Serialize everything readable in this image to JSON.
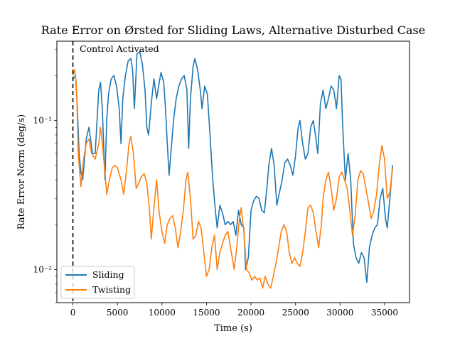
{
  "chart_data": {
    "type": "line",
    "title": "Rate Error on Ørsted for Sliding Laws, Alternative Disturbed Case",
    "xlabel": "Time (s)",
    "ylabel": "Rate Error Norm (deg/s)",
    "xlim": [
      -1800,
      37800
    ],
    "ylim": [
      0.006,
      0.34
    ],
    "yscale": "log",
    "grid": false,
    "legend_position": "lower-left",
    "x_ticks": [
      0,
      5000,
      10000,
      15000,
      20000,
      25000,
      30000,
      35000
    ],
    "x_tick_labels": [
      "0",
      "5000",
      "10000",
      "15000",
      "20000",
      "25000",
      "30000",
      "35000"
    ],
    "y_ticks": [
      0.01,
      0.1
    ],
    "y_tick_labels": [
      "10⁻²",
      "10⁻¹"
    ],
    "annotation": {
      "text": "Control Activated",
      "vline_x": 0
    },
    "series": [
      {
        "name": "Sliding",
        "color": "#1f77b4",
        "points": [
          [
            0,
            0.19
          ],
          [
            300,
            0.2
          ],
          [
            500,
            0.12
          ],
          [
            700,
            0.06
          ],
          [
            900,
            0.045
          ],
          [
            1100,
            0.04
          ],
          [
            1300,
            0.055
          ],
          [
            1500,
            0.075
          ],
          [
            1800,
            0.09
          ],
          [
            2200,
            0.06
          ],
          [
            2500,
            0.06
          ],
          [
            2900,
            0.16
          ],
          [
            3100,
            0.18
          ],
          [
            3300,
            0.12
          ],
          [
            3600,
            0.04
          ],
          [
            3800,
            0.1
          ],
          [
            4000,
            0.15
          ],
          [
            4300,
            0.19
          ],
          [
            4600,
            0.2
          ],
          [
            4900,
            0.17
          ],
          [
            5200,
            0.12
          ],
          [
            5400,
            0.07
          ],
          [
            5600,
            0.14
          ],
          [
            5900,
            0.2
          ],
          [
            6200,
            0.25
          ],
          [
            6500,
            0.26
          ],
          [
            6700,
            0.22
          ],
          [
            6900,
            0.12
          ],
          [
            7200,
            0.28
          ],
          [
            7500,
            0.29
          ],
          [
            7800,
            0.24
          ],
          [
            8100,
            0.16
          ],
          [
            8300,
            0.09
          ],
          [
            8500,
            0.08
          ],
          [
            8800,
            0.13
          ],
          [
            9100,
            0.19
          ],
          [
            9400,
            0.14
          ],
          [
            9700,
            0.18
          ],
          [
            9900,
            0.21
          ],
          [
            10200,
            0.18
          ],
          [
            10400,
            0.12
          ],
          [
            10600,
            0.07
          ],
          [
            10800,
            0.043
          ],
          [
            11000,
            0.06
          ],
          [
            11300,
            0.1
          ],
          [
            11600,
            0.14
          ],
          [
            11900,
            0.17
          ],
          [
            12200,
            0.19
          ],
          [
            12500,
            0.2
          ],
          [
            12800,
            0.16
          ],
          [
            13000,
            0.065
          ],
          [
            13200,
            0.14
          ],
          [
            13500,
            0.23
          ],
          [
            13700,
            0.26
          ],
          [
            14000,
            0.22
          ],
          [
            14300,
            0.16
          ],
          [
            14500,
            0.12
          ],
          [
            14800,
            0.17
          ],
          [
            15100,
            0.15
          ],
          [
            15400,
            0.08
          ],
          [
            15700,
            0.04
          ],
          [
            16000,
            0.025
          ],
          [
            16200,
            0.019
          ],
          [
            16500,
            0.027
          ],
          [
            16800,
            0.024
          ],
          [
            17100,
            0.02
          ],
          [
            17400,
            0.021
          ],
          [
            17700,
            0.02
          ],
          [
            18000,
            0.021
          ],
          [
            18300,
            0.017
          ],
          [
            18600,
            0.025
          ],
          [
            18900,
            0.02
          ],
          [
            19200,
            0.019
          ],
          [
            19400,
            0.01
          ],
          [
            19700,
            0.012
          ],
          [
            20000,
            0.025
          ],
          [
            20300,
            0.029
          ],
          [
            20600,
            0.031
          ],
          [
            20900,
            0.03
          ],
          [
            21200,
            0.025
          ],
          [
            21500,
            0.024
          ],
          [
            21800,
            0.036
          ],
          [
            22000,
            0.05
          ],
          [
            22300,
            0.065
          ],
          [
            22600,
            0.05
          ],
          [
            22900,
            0.027
          ],
          [
            23200,
            0.033
          ],
          [
            23500,
            0.04
          ],
          [
            23800,
            0.052
          ],
          [
            24100,
            0.055
          ],
          [
            24400,
            0.05
          ],
          [
            24700,
            0.043
          ],
          [
            25000,
            0.058
          ],
          [
            25300,
            0.09
          ],
          [
            25500,
            0.1
          ],
          [
            25800,
            0.07
          ],
          [
            26100,
            0.055
          ],
          [
            26400,
            0.06
          ],
          [
            26700,
            0.09
          ],
          [
            27000,
            0.1
          ],
          [
            27300,
            0.075
          ],
          [
            27500,
            0.06
          ],
          [
            27800,
            0.13
          ],
          [
            28100,
            0.16
          ],
          [
            28400,
            0.12
          ],
          [
            28700,
            0.14
          ],
          [
            29000,
            0.17
          ],
          [
            29300,
            0.16
          ],
          [
            29600,
            0.12
          ],
          [
            29900,
            0.2
          ],
          [
            30100,
            0.19
          ],
          [
            30300,
            0.09
          ],
          [
            30600,
            0.04
          ],
          [
            30900,
            0.06
          ],
          [
            31200,
            0.04
          ],
          [
            31500,
            0.015
          ],
          [
            31800,
            0.012
          ],
          [
            32100,
            0.011
          ],
          [
            32400,
            0.013
          ],
          [
            32700,
            0.012
          ],
          [
            33000,
            0.0082
          ],
          [
            33300,
            0.014
          ],
          [
            33600,
            0.017
          ],
          [
            33900,
            0.019
          ],
          [
            34200,
            0.02
          ],
          [
            34500,
            0.03
          ],
          [
            34800,
            0.035
          ],
          [
            35100,
            0.022
          ],
          [
            35300,
            0.019
          ],
          [
            35600,
            0.03
          ],
          [
            35900,
            0.05
          ]
        ]
      },
      {
        "name": "Twisting",
        "color": "#ff7f0e",
        "points": [
          [
            0,
            0.2
          ],
          [
            200,
            0.22
          ],
          [
            400,
            0.17
          ],
          [
            600,
            0.06
          ],
          [
            900,
            0.036
          ],
          [
            1200,
            0.055
          ],
          [
            1500,
            0.07
          ],
          [
            1800,
            0.075
          ],
          [
            2100,
            0.06
          ],
          [
            2500,
            0.055
          ],
          [
            2900,
            0.07
          ],
          [
            3100,
            0.09
          ],
          [
            3300,
            0.07
          ],
          [
            3600,
            0.045
          ],
          [
            3800,
            0.032
          ],
          [
            4100,
            0.04
          ],
          [
            4400,
            0.048
          ],
          [
            4700,
            0.05
          ],
          [
            5000,
            0.048
          ],
          [
            5400,
            0.04
          ],
          [
            5700,
            0.032
          ],
          [
            6000,
            0.045
          ],
          [
            6300,
            0.07
          ],
          [
            6500,
            0.078
          ],
          [
            6800,
            0.06
          ],
          [
            7100,
            0.035
          ],
          [
            7400,
            0.038
          ],
          [
            7700,
            0.042
          ],
          [
            8000,
            0.044
          ],
          [
            8300,
            0.038
          ],
          [
            8600,
            0.025
          ],
          [
            8800,
            0.016
          ],
          [
            9100,
            0.026
          ],
          [
            9400,
            0.04
          ],
          [
            9700,
            0.024
          ],
          [
            10000,
            0.018
          ],
          [
            10300,
            0.015
          ],
          [
            10600,
            0.02
          ],
          [
            10900,
            0.022
          ],
          [
            11200,
            0.023
          ],
          [
            11500,
            0.019
          ],
          [
            11800,
            0.014
          ],
          [
            12100,
            0.018
          ],
          [
            12400,
            0.025
          ],
          [
            12700,
            0.04
          ],
          [
            12900,
            0.045
          ],
          [
            13200,
            0.03
          ],
          [
            13500,
            0.016
          ],
          [
            13800,
            0.017
          ],
          [
            14100,
            0.021
          ],
          [
            14400,
            0.019
          ],
          [
            14700,
            0.013
          ],
          [
            15000,
            0.009
          ],
          [
            15300,
            0.01
          ],
          [
            15600,
            0.014
          ],
          [
            15900,
            0.017
          ],
          [
            16200,
            0.01
          ],
          [
            16500,
            0.013
          ],
          [
            16800,
            0.015
          ],
          [
            17100,
            0.017
          ],
          [
            17400,
            0.018
          ],
          [
            17700,
            0.014
          ],
          [
            17900,
            0.012
          ],
          [
            18100,
            0.01
          ],
          [
            18400,
            0.014
          ],
          [
            18700,
            0.022
          ],
          [
            18900,
            0.026
          ],
          [
            19200,
            0.018
          ],
          [
            19500,
            0.01
          ],
          [
            19800,
            0.0095
          ],
          [
            20100,
            0.0085
          ],
          [
            20400,
            0.009
          ],
          [
            20700,
            0.0085
          ],
          [
            21000,
            0.0088
          ],
          [
            21300,
            0.0075
          ],
          [
            21600,
            0.009
          ],
          [
            21900,
            0.008
          ],
          [
            22200,
            0.0075
          ],
          [
            22500,
            0.009
          ],
          [
            22800,
            0.011
          ],
          [
            23100,
            0.014
          ],
          [
            23400,
            0.018
          ],
          [
            23700,
            0.02
          ],
          [
            24000,
            0.018
          ],
          [
            24300,
            0.013
          ],
          [
            24600,
            0.011
          ],
          [
            24900,
            0.012
          ],
          [
            25200,
            0.011
          ],
          [
            25500,
            0.0105
          ],
          [
            25800,
            0.013
          ],
          [
            26100,
            0.018
          ],
          [
            26400,
            0.026
          ],
          [
            26700,
            0.027
          ],
          [
            27000,
            0.024
          ],
          [
            27300,
            0.018
          ],
          [
            27600,
            0.014
          ],
          [
            27900,
            0.02
          ],
          [
            28100,
            0.03
          ],
          [
            28400,
            0.04
          ],
          [
            28700,
            0.045
          ],
          [
            29000,
            0.035
          ],
          [
            29300,
            0.025
          ],
          [
            29600,
            0.03
          ],
          [
            29900,
            0.042
          ],
          [
            30200,
            0.045
          ],
          [
            30500,
            0.04
          ],
          [
            30800,
            0.035
          ],
          [
            31100,
            0.025
          ],
          [
            31400,
            0.017
          ],
          [
            31700,
            0.023
          ],
          [
            32000,
            0.04
          ],
          [
            32300,
            0.046
          ],
          [
            32600,
            0.044
          ],
          [
            32900,
            0.035
          ],
          [
            33200,
            0.028
          ],
          [
            33500,
            0.022
          ],
          [
            33800,
            0.025
          ],
          [
            34100,
            0.032
          ],
          [
            34400,
            0.05
          ],
          [
            34700,
            0.068
          ],
          [
            35000,
            0.055
          ],
          [
            35300,
            0.03
          ],
          [
            35600,
            0.033
          ],
          [
            35900,
            0.048
          ]
        ]
      }
    ]
  }
}
